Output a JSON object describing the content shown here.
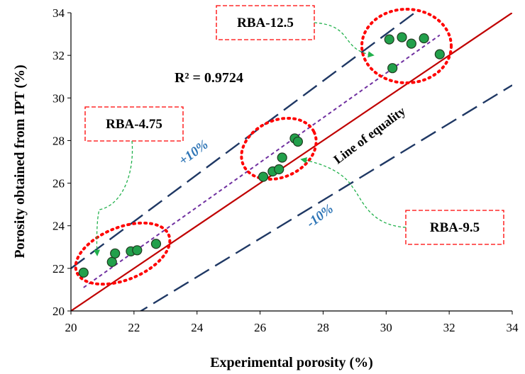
{
  "chart_data": {
    "type": "scatter",
    "xlabel": "Experimental porosity (%)",
    "ylabel": "Porosity obtained from IPT (%)",
    "xlim": [
      20,
      34
    ],
    "ylim": [
      20,
      34
    ],
    "x_ticks": [
      "20",
      "22",
      "24",
      "26",
      "28",
      "30",
      "32",
      "34"
    ],
    "y_ticks": [
      "20",
      "22",
      "24",
      "26",
      "28",
      "30",
      "32",
      "34"
    ],
    "grid": false,
    "r_squared_label": "R² = 0.9724",
    "lines": {
      "equality_label": "Line of equality",
      "plus_label": "+10%",
      "minus_label": "-10%",
      "plus_factor": 1.1,
      "minus_factor": 0.9,
      "trend": {
        "x": [
          20.4,
          31.7
        ],
        "y": [
          21.1,
          32.95
        ]
      }
    },
    "groups": [
      {
        "label": "RBA-4.75",
        "points": [
          {
            "x": 20.4,
            "y": 21.8
          },
          {
            "x": 21.3,
            "y": 22.3
          },
          {
            "x": 21.4,
            "y": 22.7
          },
          {
            "x": 21.9,
            "y": 22.8
          },
          {
            "x": 22.1,
            "y": 22.85
          },
          {
            "x": 22.7,
            "y": 23.15
          }
        ]
      },
      {
        "label": "RBA-9.5",
        "points": [
          {
            "x": 26.1,
            "y": 26.3
          },
          {
            "x": 26.4,
            "y": 26.55
          },
          {
            "x": 26.6,
            "y": 26.65
          },
          {
            "x": 26.7,
            "y": 27.2
          },
          {
            "x": 27.1,
            "y": 28.1
          },
          {
            "x": 27.2,
            "y": 27.95
          }
        ]
      },
      {
        "label": "RBA-12.5",
        "points": [
          {
            "x": 30.1,
            "y": 32.75
          },
          {
            "x": 30.2,
            "y": 31.4
          },
          {
            "x": 30.5,
            "y": 32.85
          },
          {
            "x": 30.8,
            "y": 32.55
          },
          {
            "x": 31.2,
            "y": 32.8
          },
          {
            "x": 31.7,
            "y": 32.05
          }
        ]
      }
    ],
    "colors": {
      "marker_fill": "#22a04b",
      "marker_stroke": "#1f3a1f",
      "equality_line": "#c00000",
      "band_lines": "#1f3864",
      "trend_line": "#7030a0",
      "ellipse": "#ff0000",
      "arrow": "#22b14c",
      "band_text": "#2e75b6"
    }
  }
}
